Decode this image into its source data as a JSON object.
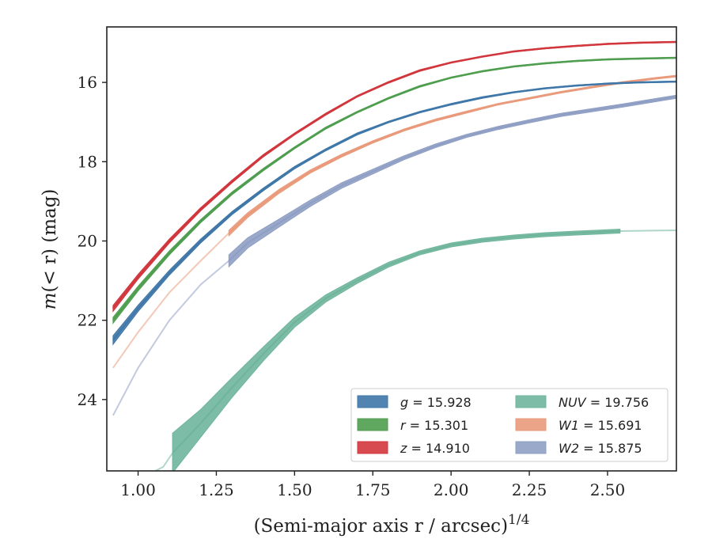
{
  "chart_data": {
    "type": "line",
    "title": "",
    "xlabel": "(Semi-major axis r / arcsec)",
    "xlabel_exponent": "1/4",
    "ylabel_var": "m",
    "ylabel_arg": "(< r)",
    "ylabel_unit": "(mag)",
    "xlim": [
      0.9,
      2.72
    ],
    "ylim": [
      25.8,
      14.6
    ],
    "y_inverted": true,
    "grid": false,
    "legend_position": "lower-right",
    "xticks": [
      1.0,
      1.25,
      1.5,
      1.75,
      2.0,
      2.25,
      2.5
    ],
    "xtick_labels": [
      "1.00",
      "1.25",
      "1.50",
      "1.75",
      "2.00",
      "2.25",
      "2.50"
    ],
    "yticks": [
      16,
      18,
      20,
      22,
      24
    ],
    "ytick_labels": [
      "16",
      "18",
      "20",
      "22",
      "24"
    ],
    "series": [
      {
        "name": "z",
        "legend_label": "z = 14.910",
        "color": "#d1363d",
        "x": [
          0.92,
          1.0,
          1.1,
          1.2,
          1.3,
          1.4,
          1.5,
          1.6,
          1.7,
          1.8,
          1.9,
          2.0,
          2.1,
          2.2,
          2.3,
          2.4,
          2.5,
          2.6,
          2.72
        ],
        "y": [
          21.7,
          20.9,
          20.0,
          19.2,
          18.5,
          17.85,
          17.3,
          16.8,
          16.35,
          16.0,
          15.7,
          15.5,
          15.35,
          15.22,
          15.14,
          15.08,
          15.03,
          15.0,
          14.98
        ],
        "width": [
          0.15,
          0.12,
          0.1,
          0.08,
          0.07,
          0.06,
          0.05,
          0.05,
          0.04,
          0.04,
          0.04,
          0.03,
          0.03,
          0.03,
          0.03,
          0.03,
          0.03,
          0.03,
          0.03
        ]
      },
      {
        "name": "r",
        "legend_label": "r = 15.301",
        "color": "#4f9e4f",
        "x": [
          0.92,
          1.0,
          1.1,
          1.2,
          1.3,
          1.4,
          1.5,
          1.6,
          1.7,
          1.8,
          1.9,
          2.0,
          2.1,
          2.2,
          2.3,
          2.4,
          2.5,
          2.6,
          2.72
        ],
        "y": [
          22.0,
          21.2,
          20.3,
          19.5,
          18.8,
          18.2,
          17.65,
          17.15,
          16.75,
          16.4,
          16.1,
          15.88,
          15.72,
          15.6,
          15.52,
          15.46,
          15.42,
          15.4,
          15.38
        ],
        "width": [
          0.15,
          0.12,
          0.1,
          0.08,
          0.07,
          0.06,
          0.05,
          0.05,
          0.04,
          0.04,
          0.04,
          0.03,
          0.03,
          0.03,
          0.03,
          0.03,
          0.03,
          0.03,
          0.03
        ]
      },
      {
        "name": "g",
        "legend_label": "g = 15.928",
        "color": "#3f77a8",
        "x": [
          0.92,
          1.0,
          1.1,
          1.2,
          1.3,
          1.4,
          1.5,
          1.6,
          1.7,
          1.8,
          1.9,
          2.0,
          2.1,
          2.2,
          2.3,
          2.4,
          2.5,
          2.6,
          2.72
        ],
        "y": [
          22.5,
          21.7,
          20.8,
          20.0,
          19.3,
          18.7,
          18.15,
          17.7,
          17.3,
          17.0,
          16.75,
          16.55,
          16.38,
          16.25,
          16.15,
          16.08,
          16.03,
          16.0,
          15.98
        ],
        "width": [
          0.22,
          0.16,
          0.12,
          0.1,
          0.08,
          0.07,
          0.06,
          0.05,
          0.05,
          0.04,
          0.04,
          0.04,
          0.04,
          0.03,
          0.03,
          0.03,
          0.03,
          0.03,
          0.03
        ]
      },
      {
        "name": "W1",
        "legend_label": "W1 = 15.691",
        "color": "#e99a7b",
        "x": [
          1.29,
          1.35,
          1.45,
          1.55,
          1.65,
          1.75,
          1.85,
          1.95,
          2.05,
          2.15,
          2.25,
          2.35,
          2.45,
          2.55,
          2.65,
          2.72
        ],
        "y": [
          19.8,
          19.35,
          18.75,
          18.25,
          17.85,
          17.5,
          17.2,
          16.95,
          16.75,
          16.55,
          16.4,
          16.25,
          16.12,
          16.0,
          15.9,
          15.84
        ],
        "width": [
          0.14,
          0.12,
          0.1,
          0.08,
          0.07,
          0.06,
          0.05,
          0.05,
          0.05,
          0.04,
          0.04,
          0.04,
          0.04,
          0.04,
          0.04,
          0.04
        ],
        "extrapolated_x": [
          0.92,
          1.0,
          1.1,
          1.2,
          1.29
        ],
        "extrapolated_y": [
          23.2,
          22.3,
          21.3,
          20.5,
          19.8
        ]
      },
      {
        "name": "W2",
        "legend_label": "W2 = 15.875",
        "color": "#8f9fc4",
        "x": [
          1.29,
          1.35,
          1.45,
          1.55,
          1.65,
          1.75,
          1.85,
          1.95,
          2.05,
          2.15,
          2.25,
          2.35,
          2.45,
          2.55,
          2.65,
          2.72
        ],
        "y": [
          20.5,
          20.05,
          19.55,
          19.05,
          18.6,
          18.25,
          17.9,
          17.6,
          17.35,
          17.15,
          16.98,
          16.82,
          16.7,
          16.58,
          16.45,
          16.36
        ],
        "width": [
          0.3,
          0.26,
          0.2,
          0.16,
          0.14,
          0.12,
          0.1,
          0.09,
          0.08,
          0.08,
          0.08,
          0.08,
          0.08,
          0.08,
          0.08,
          0.08
        ],
        "extrapolated_x": [
          0.92,
          1.0,
          1.1,
          1.2,
          1.29
        ],
        "extrapolated_y": [
          24.4,
          23.2,
          22.0,
          21.1,
          20.5
        ]
      },
      {
        "name": "NUV",
        "legend_label": "NUV = 19.756",
        "color": "#6fb59c",
        "x": [
          1.11,
          1.2,
          1.3,
          1.4,
          1.5,
          1.6,
          1.7,
          1.8,
          1.9,
          2.0,
          2.1,
          2.2,
          2.3,
          2.4,
          2.54
        ],
        "y": [
          25.35,
          24.6,
          23.7,
          22.85,
          22.05,
          21.45,
          21.0,
          20.6,
          20.3,
          20.1,
          19.98,
          19.9,
          19.84,
          19.8,
          19.75
        ],
        "width": [
          1.0,
          0.7,
          0.5,
          0.35,
          0.25,
          0.18,
          0.14,
          0.12,
          0.1,
          0.1,
          0.1,
          0.1,
          0.1,
          0.1,
          0.1
        ],
        "extrapolated_x": [
          0.97,
          1.03,
          1.08,
          1.11
        ],
        "extrapolated_y": [
          26.0,
          25.9,
          25.7,
          25.35
        ],
        "extrapolated_tail_x": [
          2.54,
          2.62,
          2.72
        ],
        "extrapolated_tail_y": [
          19.75,
          19.74,
          19.73
        ]
      }
    ],
    "legend_order": [
      [
        "g",
        "NUV"
      ],
      [
        "r",
        "W1"
      ],
      [
        "z",
        "W2"
      ]
    ]
  }
}
